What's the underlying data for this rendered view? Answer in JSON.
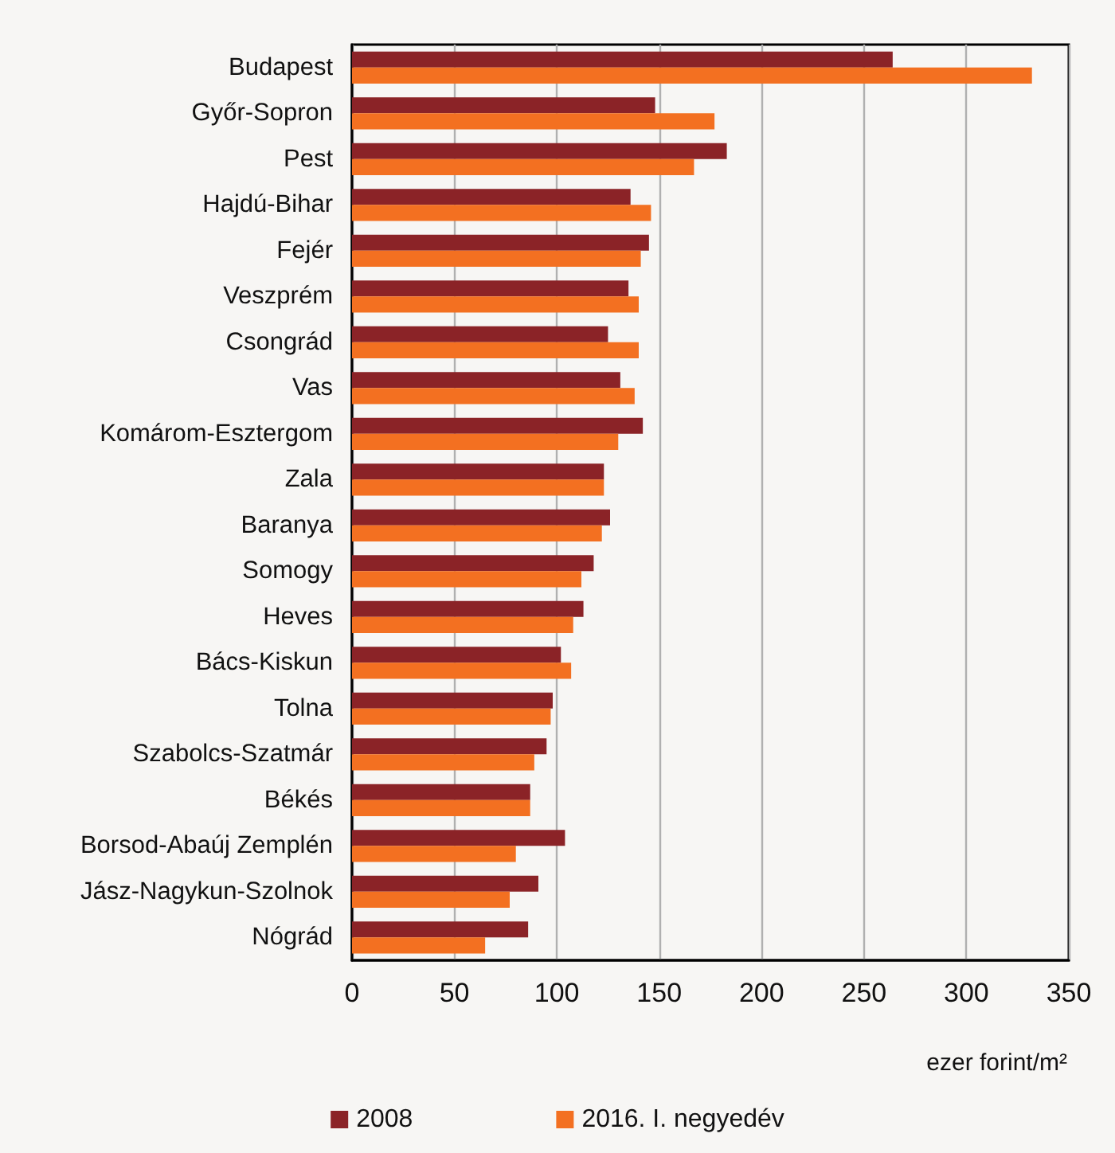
{
  "chart_data": {
    "type": "bar",
    "orientation": "horizontal",
    "xlabel": "ezer forint/m²",
    "categories": [
      "Budapest",
      "Győr-Sopron",
      "Pest",
      "Hajdú-Bihar",
      "Fejér",
      "Veszprém",
      "Csongrád",
      "Vas",
      "Komárom-Esztergom",
      "Zala",
      "Baranya",
      "Somogy",
      "Heves",
      "Bács-Kiskun",
      "Tolna",
      "Szabolcs-Szatmár",
      "Békés",
      "Borsod-Abaúj Zemplén",
      "Jász-Nagykun-Szolnok",
      "Nógrád"
    ],
    "series": [
      {
        "name": "2008",
        "color": "#8b2327",
        "values": [
          264,
          148,
          183,
          136,
          145,
          135,
          125,
          131,
          142,
          123,
          126,
          118,
          113,
          102,
          98,
          95,
          87,
          104,
          91,
          86
        ]
      },
      {
        "name": "2016. I. negyedév",
        "color": "#f37021",
        "values": [
          332,
          177,
          167,
          146,
          141,
          140,
          140,
          138,
          130,
          123,
          122,
          112,
          108,
          107,
          97,
          89,
          87,
          80,
          77,
          65
        ]
      }
    ],
    "xlim": [
      0,
      350
    ],
    "xticks": [
      0,
      50,
      100,
      150,
      200,
      250,
      300,
      350
    ],
    "grid": "x",
    "legend": "bottom"
  }
}
